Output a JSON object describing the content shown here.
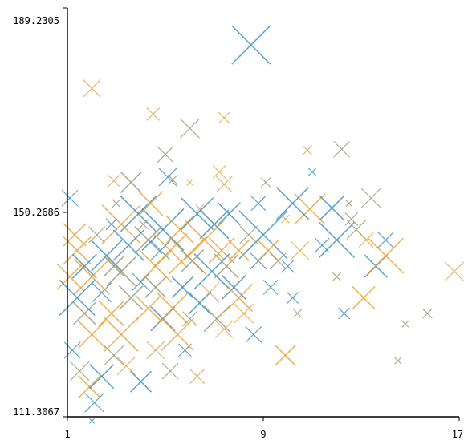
{
  "chart_data": {
    "type": "scatter",
    "marker": "x",
    "size_encoding": true,
    "grid": false,
    "legend": "none",
    "title": "",
    "xlabel": "",
    "ylabel": "",
    "xlim": [
      1,
      17
    ],
    "ylim": [
      111.3067,
      189.2305
    ],
    "x_ticks": [
      "1",
      "9",
      "17"
    ],
    "y_ticks": [
      "111.3067",
      "150.2686",
      "189.2305"
    ],
    "colors": [
      "#3a8fc0",
      "#e8a33a",
      "#9a9a7a"
    ],
    "points": [
      [
        8.5,
        182.2,
        24,
        0
      ],
      [
        2.0,
        173.9,
        11,
        1
      ],
      [
        4.5,
        169.0,
        8,
        1
      ],
      [
        6.0,
        166.3,
        12,
        2
      ],
      [
        7.4,
        168.3,
        7,
        1
      ],
      [
        10.8,
        162.1,
        6,
        1
      ],
      [
        5.0,
        161.3,
        10,
        2
      ],
      [
        12.2,
        162.3,
        10,
        2
      ],
      [
        2.9,
        156.3,
        7,
        1
      ],
      [
        5.3,
        156.5,
        6,
        2
      ],
      [
        7.4,
        155.6,
        10,
        1
      ],
      [
        10.9,
        150.9,
        19,
        1
      ],
      [
        11.8,
        151.1,
        15,
        0
      ],
      [
        9.0,
        146.0,
        30,
        0
      ],
      [
        10.2,
        152.0,
        20,
        0
      ],
      [
        1.1,
        153.0,
        10,
        0
      ],
      [
        1.3,
        146.0,
        14,
        1
      ],
      [
        1.4,
        143.0,
        17,
        1
      ],
      [
        1.7,
        140.0,
        15,
        0
      ],
      [
        2.0,
        138.0,
        22,
        1
      ],
      [
        2.6,
        142.0,
        19,
        0
      ],
      [
        2.9,
        140.0,
        13,
        2
      ],
      [
        3.2,
        148.0,
        24,
        1
      ],
      [
        3.5,
        144.0,
        19,
        0
      ],
      [
        3.9,
        150.0,
        22,
        0
      ],
      [
        4.3,
        145.0,
        17,
        2
      ],
      [
        4.6,
        140.0,
        20,
        1
      ],
      [
        4.9,
        147.0,
        26,
        0
      ],
      [
        5.2,
        143.0,
        21,
        1
      ],
      [
        5.6,
        147.0,
        17,
        1
      ],
      [
        5.9,
        142.0,
        23,
        1
      ],
      [
        6.3,
        150.0,
        20,
        0
      ],
      [
        6.6,
        145.0,
        24,
        1
      ],
      [
        7.0,
        148.0,
        18,
        0
      ],
      [
        7.3,
        143.0,
        16,
        1
      ],
      [
        7.6,
        150.0,
        14,
        0
      ],
      [
        8.0,
        143.0,
        13,
        1
      ],
      [
        8.4,
        146.0,
        11,
        2
      ],
      [
        8.8,
        141.0,
        10,
        0
      ],
      [
        9.2,
        143.0,
        14,
        1
      ],
      [
        9.6,
        141.0,
        10,
        2
      ],
      [
        10.0,
        140.0,
        8,
        0
      ],
      [
        10.5,
        143.0,
        11,
        1
      ],
      [
        11.4,
        144.0,
        9,
        0
      ],
      [
        12.0,
        145.0,
        22,
        0
      ],
      [
        12.8,
        147.0,
        12,
        2
      ],
      [
        13.2,
        145.0,
        9,
        1
      ],
      [
        13.6,
        140.0,
        14,
        0
      ],
      [
        14.0,
        142.0,
        22,
        1
      ],
      [
        13.1,
        134.0,
        14,
        1
      ],
      [
        12.6,
        149.0,
        8,
        2
      ],
      [
        13.4,
        153.0,
        12,
        2
      ],
      [
        14.0,
        145.0,
        10,
        0
      ],
      [
        16.8,
        139.0,
        12,
        1
      ],
      [
        1.1,
        138.0,
        16,
        1
      ],
      [
        1.4,
        134.0,
        22,
        0
      ],
      [
        1.7,
        131.0,
        14,
        2
      ],
      [
        2.0,
        127.0,
        17,
        1
      ],
      [
        2.4,
        135.0,
        12,
        0
      ],
      [
        2.8,
        131.0,
        16,
        1
      ],
      [
        3.2,
        127.0,
        21,
        1
      ],
      [
        3.6,
        134.0,
        15,
        2
      ],
      [
        4.0,
        137.0,
        11,
        0
      ],
      [
        4.3,
        132.0,
        16,
        1
      ],
      [
        4.6,
        136.0,
        13,
        2
      ],
      [
        4.9,
        130.0,
        15,
        0
      ],
      [
        5.3,
        132.0,
        19,
        1
      ],
      [
        5.7,
        136.0,
        13,
        0
      ],
      [
        6.0,
        130.0,
        9,
        2
      ],
      [
        6.4,
        133.0,
        14,
        0
      ],
      [
        6.8,
        135.0,
        12,
        1
      ],
      [
        7.1,
        130.0,
        16,
        2
      ],
      [
        7.4,
        128.0,
        11,
        1
      ],
      [
        7.8,
        136.0,
        15,
        0
      ],
      [
        8.2,
        131.0,
        12,
        1
      ],
      [
        8.6,
        127.0,
        10,
        0
      ],
      [
        1.2,
        124.0,
        10,
        0
      ],
      [
        1.5,
        120.0,
        12,
        2
      ],
      [
        1.9,
        117.0,
        14,
        1
      ],
      [
        2.4,
        119.0,
        15,
        0
      ],
      [
        2.9,
        123.0,
        12,
        2
      ],
      [
        3.4,
        121.0,
        11,
        1
      ],
      [
        4.0,
        118.0,
        13,
        0
      ],
      [
        4.6,
        124.0,
        11,
        1
      ],
      [
        5.2,
        120.0,
        10,
        2
      ],
      [
        5.8,
        124.0,
        8,
        0
      ],
      [
        6.3,
        119.0,
        9,
        1
      ],
      [
        2.1,
        114.0,
        12,
        0
      ],
      [
        2.0,
        110.5,
        3,
        0
      ],
      [
        9.9,
        123.0,
        13,
        1
      ],
      [
        10.4,
        131.0,
        5,
        2
      ],
      [
        10.2,
        134.0,
        7,
        0
      ],
      [
        12.3,
        131.0,
        7,
        0
      ],
      [
        14.5,
        122.0,
        4,
        2
      ],
      [
        15.7,
        131.0,
        6,
        2
      ],
      [
        14.8,
        129.0,
        4,
        2
      ],
      [
        3.0,
        152.0,
        5,
        2
      ],
      [
        6.0,
        156.0,
        4,
        1
      ],
      [
        9.1,
        156.0,
        6,
        2
      ],
      [
        11.0,
        158.0,
        5,
        0
      ],
      [
        12.5,
        152.0,
        4,
        2
      ],
      [
        4.1,
        148.0,
        6,
        2
      ],
      [
        9.9,
        149.0,
        5,
        1
      ],
      [
        12.0,
        138.0,
        5,
        2
      ],
      [
        8.8,
        152.0,
        9,
        0
      ],
      [
        5.1,
        157.0,
        11,
        0
      ],
      [
        6.4,
        151.0,
        5,
        1
      ],
      [
        3.6,
        156.0,
        13,
        2
      ],
      [
        7.2,
        158.0,
        8,
        1
      ],
      [
        2.8,
        148.0,
        7,
        0
      ],
      [
        4.4,
        152.0,
        15,
        1
      ],
      [
        6.9,
        139.0,
        22,
        0
      ],
      [
        3.2,
        139.0,
        18,
        2
      ],
      [
        5.5,
        127.0,
        20,
        1
      ],
      [
        8.0,
        134.0,
        17,
        1
      ],
      [
        7.5,
        140.0,
        15,
        2
      ],
      [
        9.3,
        136.0,
        9,
        0
      ],
      [
        2.2,
        146.0,
        10,
        2
      ],
      [
        4.8,
        143.0,
        12,
        0
      ],
      [
        6.1,
        141.0,
        14,
        2
      ]
    ]
  }
}
